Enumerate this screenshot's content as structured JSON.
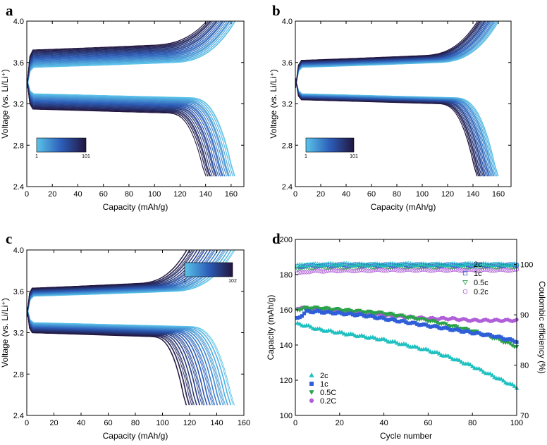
{
  "chart_data": [
    {
      "type": "line",
      "panel_label": "a",
      "xlabel": "Capacity (mAh/g)",
      "ylabel": "Voltage (vs. Li/Li⁺)",
      "xlim": [
        0,
        170
      ],
      "ylim": [
        2.4,
        4.0
      ],
      "xticks": [
        "0",
        "20",
        "40",
        "60",
        "80",
        "100",
        "120",
        "140",
        "160"
      ],
      "yticks": [
        "2.4",
        "2.8",
        "3.2",
        "3.6",
        "4.0"
      ],
      "colorbar": {
        "min_label": "1",
        "max_label": "101",
        "placement": "bottom-left"
      },
      "series_summary": {
        "cycles": 101,
        "charge_plateau_first": 3.55,
        "charge_plateau_last": 3.72,
        "discharge_plateau_first": 3.3,
        "discharge_plateau_last": 3.15,
        "capacity_first": 163,
        "capacity_last": 140
      }
    },
    {
      "type": "line",
      "panel_label": "b",
      "xlabel": "Capacity (mAh/g)",
      "ylabel": "Voltage (vs. Li/Li⁺)",
      "xlim": [
        0,
        170
      ],
      "ylim": [
        2.4,
        4.0
      ],
      "xticks": [
        "0",
        "20",
        "40",
        "60",
        "80",
        "100",
        "120",
        "140",
        "160"
      ],
      "yticks": [
        "2.4",
        "2.8",
        "3.2",
        "3.6",
        "4.0"
      ],
      "colorbar": {
        "min_label": "1",
        "max_label": "101",
        "placement": "bottom-left"
      },
      "series_summary": {
        "cycles": 101,
        "charge_plateau_first": 3.55,
        "charge_plateau_last": 3.62,
        "discharge_plateau_first": 3.3,
        "discharge_plateau_last": 3.24,
        "capacity_first": 160,
        "capacity_last": 143
      }
    },
    {
      "type": "line",
      "panel_label": "c",
      "xlabel": "Capacity (mAh/g)",
      "ylabel": "Voltage (vs. Li/Li⁺)",
      "xlim": [
        0,
        160
      ],
      "ylim": [
        2.4,
        4.0
      ],
      "xticks": [
        "0",
        "20",
        "40",
        "60",
        "80",
        "100",
        "120",
        "140",
        "160"
      ],
      "yticks": [
        "2.4",
        "2.8",
        "3.2",
        "3.6",
        "4.0"
      ],
      "colorbar": {
        "min_label": "1",
        "max_label": "102",
        "placement": "top-right"
      },
      "series_summary": {
        "cycles": 102,
        "charge_plateau_first": 3.55,
        "charge_plateau_last": 3.63,
        "discharge_plateau_first": 3.3,
        "discharge_plateau_last": 3.2,
        "capacity_first": 153,
        "capacity_last": 117
      }
    },
    {
      "type": "scatter",
      "panel_label": "d",
      "xlabel": "Cycle number",
      "ylabel": "Capacity (mAh/g)",
      "y2label": "Coulombic efficiency (%)",
      "xlim": [
        0,
        100
      ],
      "ylim": [
        100,
        200
      ],
      "y2lim": [
        70,
        105
      ],
      "xticks": [
        "0",
        "20",
        "40",
        "60",
        "80",
        "100"
      ],
      "yticks": [
        "100",
        "120",
        "140",
        "160",
        "180",
        "200"
      ],
      "y2ticks": [
        "70",
        "80",
        "90",
        "100"
      ],
      "legend_ce": [
        "2c",
        "1c",
        "0.5c",
        "0.2c"
      ],
      "legend_capacity": [
        "2c",
        "1c",
        "0.5C",
        "0.2C"
      ],
      "series": [
        {
          "name": "2c",
          "x": [
            1,
            5,
            10,
            20,
            30,
            40,
            50,
            60,
            70,
            80,
            90,
            100
          ],
          "capacity": [
            152,
            151,
            149,
            147,
            145,
            143,
            140,
            137,
            133,
            128,
            122,
            116
          ],
          "ce": [
            99.8,
            100,
            100,
            100.1,
            100,
            100,
            100.1,
            100,
            100,
            100.1,
            100,
            100
          ]
        },
        {
          "name": "1c",
          "x": [
            1,
            5,
            10,
            20,
            30,
            40,
            50,
            60,
            70,
            80,
            90,
            100
          ],
          "capacity": [
            155,
            159,
            159,
            158,
            157,
            155,
            153,
            151,
            149,
            147,
            145,
            142
          ],
          "ce": [
            99.6,
            99.8,
            99.8,
            99.9,
            99.9,
            99.9,
            99.9,
            99.9,
            99.9,
            99.9,
            99.9,
            99.9
          ]
        },
        {
          "name": "0.5C",
          "x": [
            1,
            5,
            10,
            20,
            30,
            40,
            50,
            60,
            70,
            80,
            90,
            100
          ],
          "capacity": [
            160,
            161,
            161,
            160,
            159,
            158,
            156,
            154,
            151,
            148,
            144,
            139
          ],
          "ce": [
            99.2,
            99.4,
            99.5,
            99.5,
            99.6,
            99.6,
            99.6,
            99.6,
            99.6,
            99.6,
            99.6,
            99.6
          ]
        },
        {
          "name": "0.2C",
          "x": [
            1,
            5,
            10,
            20,
            30,
            40,
            50,
            60,
            70,
            80,
            90,
            100
          ],
          "capacity": [
            161,
            161,
            160,
            159,
            158,
            157,
            156,
            155,
            155,
            154,
            154,
            154
          ],
          "ce": [
            98.2,
            98.6,
            98.7,
            98.8,
            98.8,
            98.9,
            98.9,
            98.9,
            98.9,
            98.9,
            98.9,
            98.9
          ]
        }
      ]
    }
  ],
  "colors": {
    "light": "#5bc4ea",
    "dark": "#22153e",
    "s_2c": "#1fc0c0",
    "s_1c": "#2f5fd8",
    "s_05c": "#2aa24a",
    "s_02c": "#b05fd8"
  }
}
